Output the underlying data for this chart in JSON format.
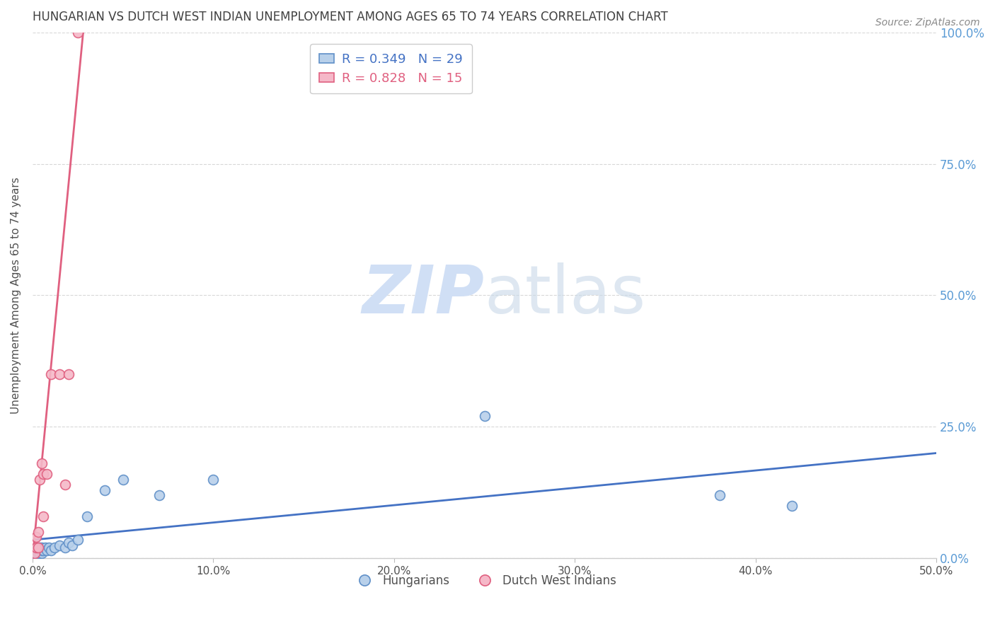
{
  "title": "HUNGARIAN VS DUTCH WEST INDIAN UNEMPLOYMENT AMONG AGES 65 TO 74 YEARS CORRELATION CHART",
  "source": "Source: ZipAtlas.com",
  "ylabel": "Unemployment Among Ages 65 to 74 years",
  "xlim": [
    0.0,
    0.5
  ],
  "ylim": [
    0.0,
    1.0
  ],
  "xticks": [
    0.0,
    0.1,
    0.2,
    0.3,
    0.4,
    0.5
  ],
  "xtick_labels": [
    "0.0%",
    "10.0%",
    "20.0%",
    "30.0%",
    "40.0%",
    "50.0%"
  ],
  "yticks": [
    0.0,
    0.25,
    0.5,
    0.75,
    1.0
  ],
  "ytick_labels": [
    "0.0%",
    "25.0%",
    "50.0%",
    "75.0%",
    "100.0%"
  ],
  "blue_R": "0.349",
  "blue_N": "29",
  "pink_R": "0.828",
  "pink_N": "15",
  "blue_fill_color": "#b8d0ea",
  "pink_fill_color": "#f5b8c8",
  "blue_edge_color": "#6090c8",
  "pink_edge_color": "#e06080",
  "blue_line_color": "#4472c4",
  "pink_line_color": "#e06080",
  "legend_blue_label": "Hungarians",
  "legend_pink_label": "Dutch West Indians",
  "watermark_zip": "ZIP",
  "watermark_atlas": "atlas",
  "watermark_color": "#d0dff5",
  "blue_scatter_x": [
    0.001,
    0.002,
    0.002,
    0.003,
    0.003,
    0.004,
    0.004,
    0.005,
    0.005,
    0.005,
    0.006,
    0.007,
    0.008,
    0.009,
    0.01,
    0.012,
    0.015,
    0.018,
    0.02,
    0.022,
    0.025,
    0.03,
    0.04,
    0.05,
    0.07,
    0.1,
    0.25,
    0.38,
    0.42
  ],
  "blue_scatter_y": [
    0.01,
    0.01,
    0.015,
    0.01,
    0.02,
    0.01,
    0.02,
    0.01,
    0.015,
    0.02,
    0.015,
    0.02,
    0.015,
    0.02,
    0.015,
    0.02,
    0.025,
    0.02,
    0.03,
    0.025,
    0.035,
    0.08,
    0.13,
    0.15,
    0.12,
    0.15,
    0.27,
    0.12,
    0.1
  ],
  "pink_scatter_x": [
    0.001,
    0.002,
    0.002,
    0.003,
    0.003,
    0.004,
    0.005,
    0.006,
    0.006,
    0.008,
    0.01,
    0.015,
    0.018,
    0.02,
    0.025
  ],
  "pink_scatter_y": [
    0.01,
    0.02,
    0.04,
    0.02,
    0.05,
    0.15,
    0.18,
    0.08,
    0.16,
    0.16,
    0.35,
    0.35,
    0.14,
    0.35,
    1.0
  ],
  "blue_line_x0": 0.0,
  "blue_line_x1": 0.5,
  "blue_line_y0": 0.035,
  "blue_line_y1": 0.2,
  "pink_line_x0": 0.0,
  "pink_line_x1": 0.028,
  "pink_line_y0": 0.0,
  "pink_line_y1": 1.0,
  "background_color": "#ffffff",
  "grid_color": "#d8d8d8",
  "title_color": "#404040",
  "axis_label_color": "#505050",
  "right_tick_color": "#5b9bd5",
  "legend_R_blue_color": "#4472c4",
  "legend_R_pink_color": "#e06080",
  "bottom_legend_color": "#505050",
  "marker_size": 100,
  "marker_linewidth": 1.2
}
